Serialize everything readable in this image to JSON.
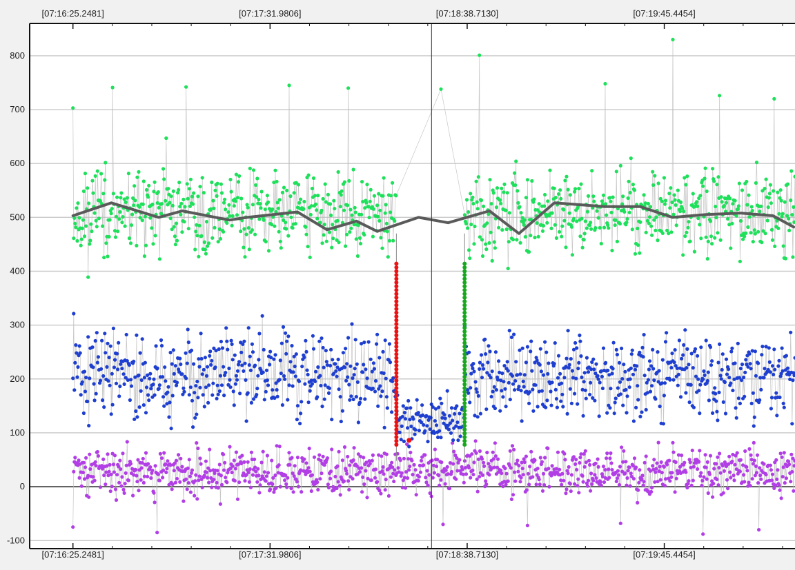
{
  "chart_data": {
    "type": "scatter",
    "title": "",
    "xlabel": "",
    "ylabel": "",
    "x_tick_labels": [
      "[07:16:25.2481]",
      "[07:17:31.9806]",
      "[07:18:38.7130]",
      "[07:19:45.4454]"
    ],
    "x_ticks_s": [
      0,
      66.7325,
      133.4649,
      200.1973
    ],
    "xlim_s": [
      -14.65,
      244.45
    ],
    "ylim": [
      -115,
      860
    ],
    "y_ticks": [
      -100,
      0,
      100,
      200,
      300,
      400,
      500,
      600,
      700,
      800
    ],
    "grid": true,
    "cursor_x_s": 121.4,
    "series": [
      {
        "role": "top",
        "color": "#1ee05a",
        "mean": 510,
        "spread": 55,
        "min": 330,
        "max": 830,
        "peaks": [
          [
            0,
            703
          ],
          [
            13.4,
            741
          ],
          [
            38.3,
            742
          ],
          [
            73.2,
            745
          ],
          [
            93.2,
            740
          ],
          [
            124.6,
            738
          ],
          [
            137.6,
            801
          ],
          [
            180.2,
            748
          ],
          [
            203.1,
            830
          ],
          [
            218.9,
            726
          ],
          [
            237.4,
            720
          ]
        ]
      },
      {
        "role": "middle",
        "color": "#1e3fd0",
        "mean": 210,
        "spread": 55,
        "min": 50,
        "max": 450,
        "dip_range_s": [
          109.5,
          132.6
        ],
        "dip_mean": 125
      },
      {
        "role": "bottom",
        "color": "#b23ee6",
        "mean": 28,
        "spread": 30,
        "min": -90,
        "max": 105,
        "lows": [
          [
            0,
            -75
          ],
          [
            28.5,
            -85
          ],
          [
            125.3,
            -70
          ],
          [
            153.9,
            -72
          ],
          [
            185.4,
            -68
          ],
          [
            213.3,
            -88
          ],
          [
            232.2,
            -80
          ]
        ]
      },
      {
        "role": "trend",
        "color": "#5a5a5a",
        "points": [
          [
            0,
            503
          ],
          [
            13,
            527
          ],
          [
            29,
            500
          ],
          [
            37,
            512
          ],
          [
            53,
            495
          ],
          [
            59,
            500
          ],
          [
            76,
            510
          ],
          [
            86,
            477
          ],
          [
            96,
            493
          ],
          [
            103,
            474
          ],
          [
            117,
            500
          ],
          [
            127,
            490
          ],
          [
            141,
            512
          ],
          [
            151,
            470
          ],
          [
            163,
            527
          ],
          [
            180,
            520
          ],
          [
            192,
            520
          ],
          [
            203,
            500
          ],
          [
            214,
            505
          ],
          [
            226,
            508
          ],
          [
            237,
            503
          ],
          [
            244,
            482
          ]
        ]
      },
      {
        "role": "marker-red",
        "color": "#ee1111",
        "x_s": 109.5,
        "y_range": [
          78,
          420
        ]
      },
      {
        "role": "marker-green",
        "color": "#17a81d",
        "x_s": 132.6,
        "y_range": [
          78,
          420
        ]
      }
    ]
  }
}
